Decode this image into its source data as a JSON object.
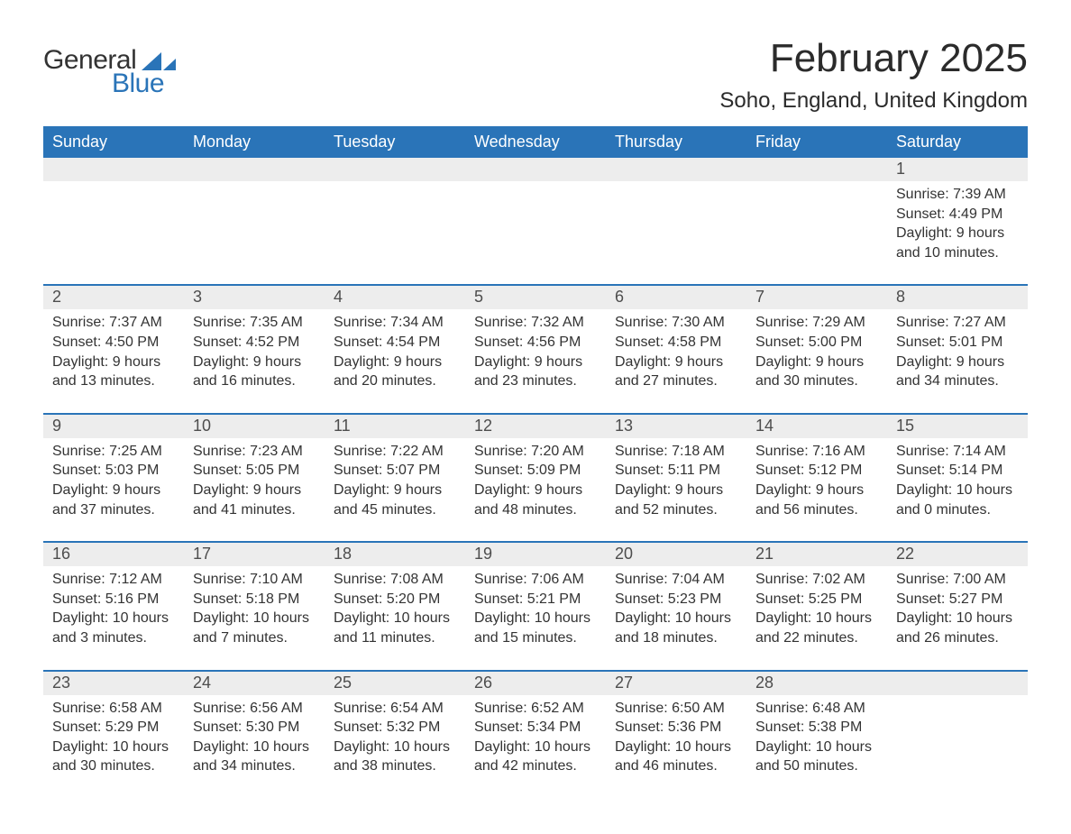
{
  "logo": {
    "word1": "General",
    "word2": "Blue",
    "accent_color": "#2a74b8"
  },
  "header": {
    "month_title": "February 2025",
    "location": "Soho, England, United Kingdom"
  },
  "calendar": {
    "type": "table",
    "header_bg": "#2a74b8",
    "header_text_color": "#ffffff",
    "daynum_bg": "#ededed",
    "divider_color": "#2a74b8",
    "body_bg": "#ffffff",
    "text_color": "#333333",
    "title_fontsize": 44,
    "location_fontsize": 24,
    "weekday_fontsize": 18,
    "daynum_fontsize": 18,
    "info_fontsize": 16,
    "weekdays": [
      "Sunday",
      "Monday",
      "Tuesday",
      "Wednesday",
      "Thursday",
      "Friday",
      "Saturday"
    ],
    "weeks": [
      [
        null,
        null,
        null,
        null,
        null,
        null,
        {
          "day": "1",
          "sunrise": "Sunrise: 7:39 AM",
          "sunset": "Sunset: 4:49 PM",
          "daylight1": "Daylight: 9 hours",
          "daylight2": "and 10 minutes."
        }
      ],
      [
        {
          "day": "2",
          "sunrise": "Sunrise: 7:37 AM",
          "sunset": "Sunset: 4:50 PM",
          "daylight1": "Daylight: 9 hours",
          "daylight2": "and 13 minutes."
        },
        {
          "day": "3",
          "sunrise": "Sunrise: 7:35 AM",
          "sunset": "Sunset: 4:52 PM",
          "daylight1": "Daylight: 9 hours",
          "daylight2": "and 16 minutes."
        },
        {
          "day": "4",
          "sunrise": "Sunrise: 7:34 AM",
          "sunset": "Sunset: 4:54 PM",
          "daylight1": "Daylight: 9 hours",
          "daylight2": "and 20 minutes."
        },
        {
          "day": "5",
          "sunrise": "Sunrise: 7:32 AM",
          "sunset": "Sunset: 4:56 PM",
          "daylight1": "Daylight: 9 hours",
          "daylight2": "and 23 minutes."
        },
        {
          "day": "6",
          "sunrise": "Sunrise: 7:30 AM",
          "sunset": "Sunset: 4:58 PM",
          "daylight1": "Daylight: 9 hours",
          "daylight2": "and 27 minutes."
        },
        {
          "day": "7",
          "sunrise": "Sunrise: 7:29 AM",
          "sunset": "Sunset: 5:00 PM",
          "daylight1": "Daylight: 9 hours",
          "daylight2": "and 30 minutes."
        },
        {
          "day": "8",
          "sunrise": "Sunrise: 7:27 AM",
          "sunset": "Sunset: 5:01 PM",
          "daylight1": "Daylight: 9 hours",
          "daylight2": "and 34 minutes."
        }
      ],
      [
        {
          "day": "9",
          "sunrise": "Sunrise: 7:25 AM",
          "sunset": "Sunset: 5:03 PM",
          "daylight1": "Daylight: 9 hours",
          "daylight2": "and 37 minutes."
        },
        {
          "day": "10",
          "sunrise": "Sunrise: 7:23 AM",
          "sunset": "Sunset: 5:05 PM",
          "daylight1": "Daylight: 9 hours",
          "daylight2": "and 41 minutes."
        },
        {
          "day": "11",
          "sunrise": "Sunrise: 7:22 AM",
          "sunset": "Sunset: 5:07 PM",
          "daylight1": "Daylight: 9 hours",
          "daylight2": "and 45 minutes."
        },
        {
          "day": "12",
          "sunrise": "Sunrise: 7:20 AM",
          "sunset": "Sunset: 5:09 PM",
          "daylight1": "Daylight: 9 hours",
          "daylight2": "and 48 minutes."
        },
        {
          "day": "13",
          "sunrise": "Sunrise: 7:18 AM",
          "sunset": "Sunset: 5:11 PM",
          "daylight1": "Daylight: 9 hours",
          "daylight2": "and 52 minutes."
        },
        {
          "day": "14",
          "sunrise": "Sunrise: 7:16 AM",
          "sunset": "Sunset: 5:12 PM",
          "daylight1": "Daylight: 9 hours",
          "daylight2": "and 56 minutes."
        },
        {
          "day": "15",
          "sunrise": "Sunrise: 7:14 AM",
          "sunset": "Sunset: 5:14 PM",
          "daylight1": "Daylight: 10 hours",
          "daylight2": "and 0 minutes."
        }
      ],
      [
        {
          "day": "16",
          "sunrise": "Sunrise: 7:12 AM",
          "sunset": "Sunset: 5:16 PM",
          "daylight1": "Daylight: 10 hours",
          "daylight2": "and 3 minutes."
        },
        {
          "day": "17",
          "sunrise": "Sunrise: 7:10 AM",
          "sunset": "Sunset: 5:18 PM",
          "daylight1": "Daylight: 10 hours",
          "daylight2": "and 7 minutes."
        },
        {
          "day": "18",
          "sunrise": "Sunrise: 7:08 AM",
          "sunset": "Sunset: 5:20 PM",
          "daylight1": "Daylight: 10 hours",
          "daylight2": "and 11 minutes."
        },
        {
          "day": "19",
          "sunrise": "Sunrise: 7:06 AM",
          "sunset": "Sunset: 5:21 PM",
          "daylight1": "Daylight: 10 hours",
          "daylight2": "and 15 minutes."
        },
        {
          "day": "20",
          "sunrise": "Sunrise: 7:04 AM",
          "sunset": "Sunset: 5:23 PM",
          "daylight1": "Daylight: 10 hours",
          "daylight2": "and 18 minutes."
        },
        {
          "day": "21",
          "sunrise": "Sunrise: 7:02 AM",
          "sunset": "Sunset: 5:25 PM",
          "daylight1": "Daylight: 10 hours",
          "daylight2": "and 22 minutes."
        },
        {
          "day": "22",
          "sunrise": "Sunrise: 7:00 AM",
          "sunset": "Sunset: 5:27 PM",
          "daylight1": "Daylight: 10 hours",
          "daylight2": "and 26 minutes."
        }
      ],
      [
        {
          "day": "23",
          "sunrise": "Sunrise: 6:58 AM",
          "sunset": "Sunset: 5:29 PM",
          "daylight1": "Daylight: 10 hours",
          "daylight2": "and 30 minutes."
        },
        {
          "day": "24",
          "sunrise": "Sunrise: 6:56 AM",
          "sunset": "Sunset: 5:30 PM",
          "daylight1": "Daylight: 10 hours",
          "daylight2": "and 34 minutes."
        },
        {
          "day": "25",
          "sunrise": "Sunrise: 6:54 AM",
          "sunset": "Sunset: 5:32 PM",
          "daylight1": "Daylight: 10 hours",
          "daylight2": "and 38 minutes."
        },
        {
          "day": "26",
          "sunrise": "Sunrise: 6:52 AM",
          "sunset": "Sunset: 5:34 PM",
          "daylight1": "Daylight: 10 hours",
          "daylight2": "and 42 minutes."
        },
        {
          "day": "27",
          "sunrise": "Sunrise: 6:50 AM",
          "sunset": "Sunset: 5:36 PM",
          "daylight1": "Daylight: 10 hours",
          "daylight2": "and 46 minutes."
        },
        {
          "day": "28",
          "sunrise": "Sunrise: 6:48 AM",
          "sunset": "Sunset: 5:38 PM",
          "daylight1": "Daylight: 10 hours",
          "daylight2": "and 50 minutes."
        },
        null
      ]
    ]
  }
}
